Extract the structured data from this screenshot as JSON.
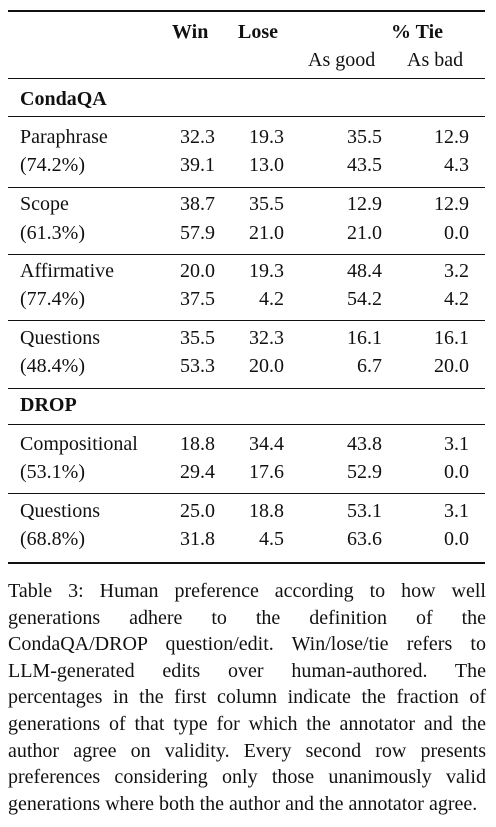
{
  "header": {
    "win": "Win",
    "lose": "Lose",
    "tie": "% Tie",
    "as_good": "As good",
    "as_bad": "As bad"
  },
  "sections": [
    {
      "name": "CondaQA",
      "groups": [
        {
          "label": "Paraphrase",
          "pct": "(74.2%)",
          "rows": [
            [
              "32.3",
              "19.3",
              "35.5",
              "12.9"
            ],
            [
              "39.1",
              "13.0",
              "43.5",
              "4.3"
            ]
          ]
        },
        {
          "label": "Scope",
          "pct": "(61.3%)",
          "rows": [
            [
              "38.7",
              "35.5",
              "12.9",
              "12.9"
            ],
            [
              "57.9",
              "21.0",
              "21.0",
              "0.0"
            ]
          ]
        },
        {
          "label": "Affirmative",
          "pct": "(77.4%)",
          "rows": [
            [
              "20.0",
              "19.3",
              "48.4",
              "3.2"
            ],
            [
              "37.5",
              "4.2",
              "54.2",
              "4.2"
            ]
          ]
        },
        {
          "label": "Questions",
          "pct": "(48.4%)",
          "rows": [
            [
              "35.5",
              "32.3",
              "16.1",
              "16.1"
            ],
            [
              "53.3",
              "20.0",
              "6.7",
              "20.0"
            ]
          ]
        }
      ]
    },
    {
      "name": "DROP",
      "groups": [
        {
          "label": "Compositional",
          "pct": "(53.1%)",
          "rows": [
            [
              "18.8",
              "34.4",
              "43.8",
              "3.1"
            ],
            [
              "29.4",
              "17.6",
              "52.9",
              "0.0"
            ]
          ]
        },
        {
          "label": "Questions",
          "pct": "(68.8%)",
          "rows": [
            [
              "25.0",
              "18.8",
              "53.1",
              "3.1"
            ],
            [
              "31.8",
              "4.5",
              "63.6",
              "0.0"
            ]
          ]
        }
      ]
    }
  ],
  "caption": "Table 3: Human preference according to how well generations adhere to the definition of the CondaQA/DROP question/edit. Win/lose/tie refers to LLM-generated edits over human-authored. The percentages in the first column indicate the fraction of generations of that type for which the annotator and the author agree on validity. Every second row presents preferences considering only those unanimously valid generations where both the author and the annotator agree."
}
